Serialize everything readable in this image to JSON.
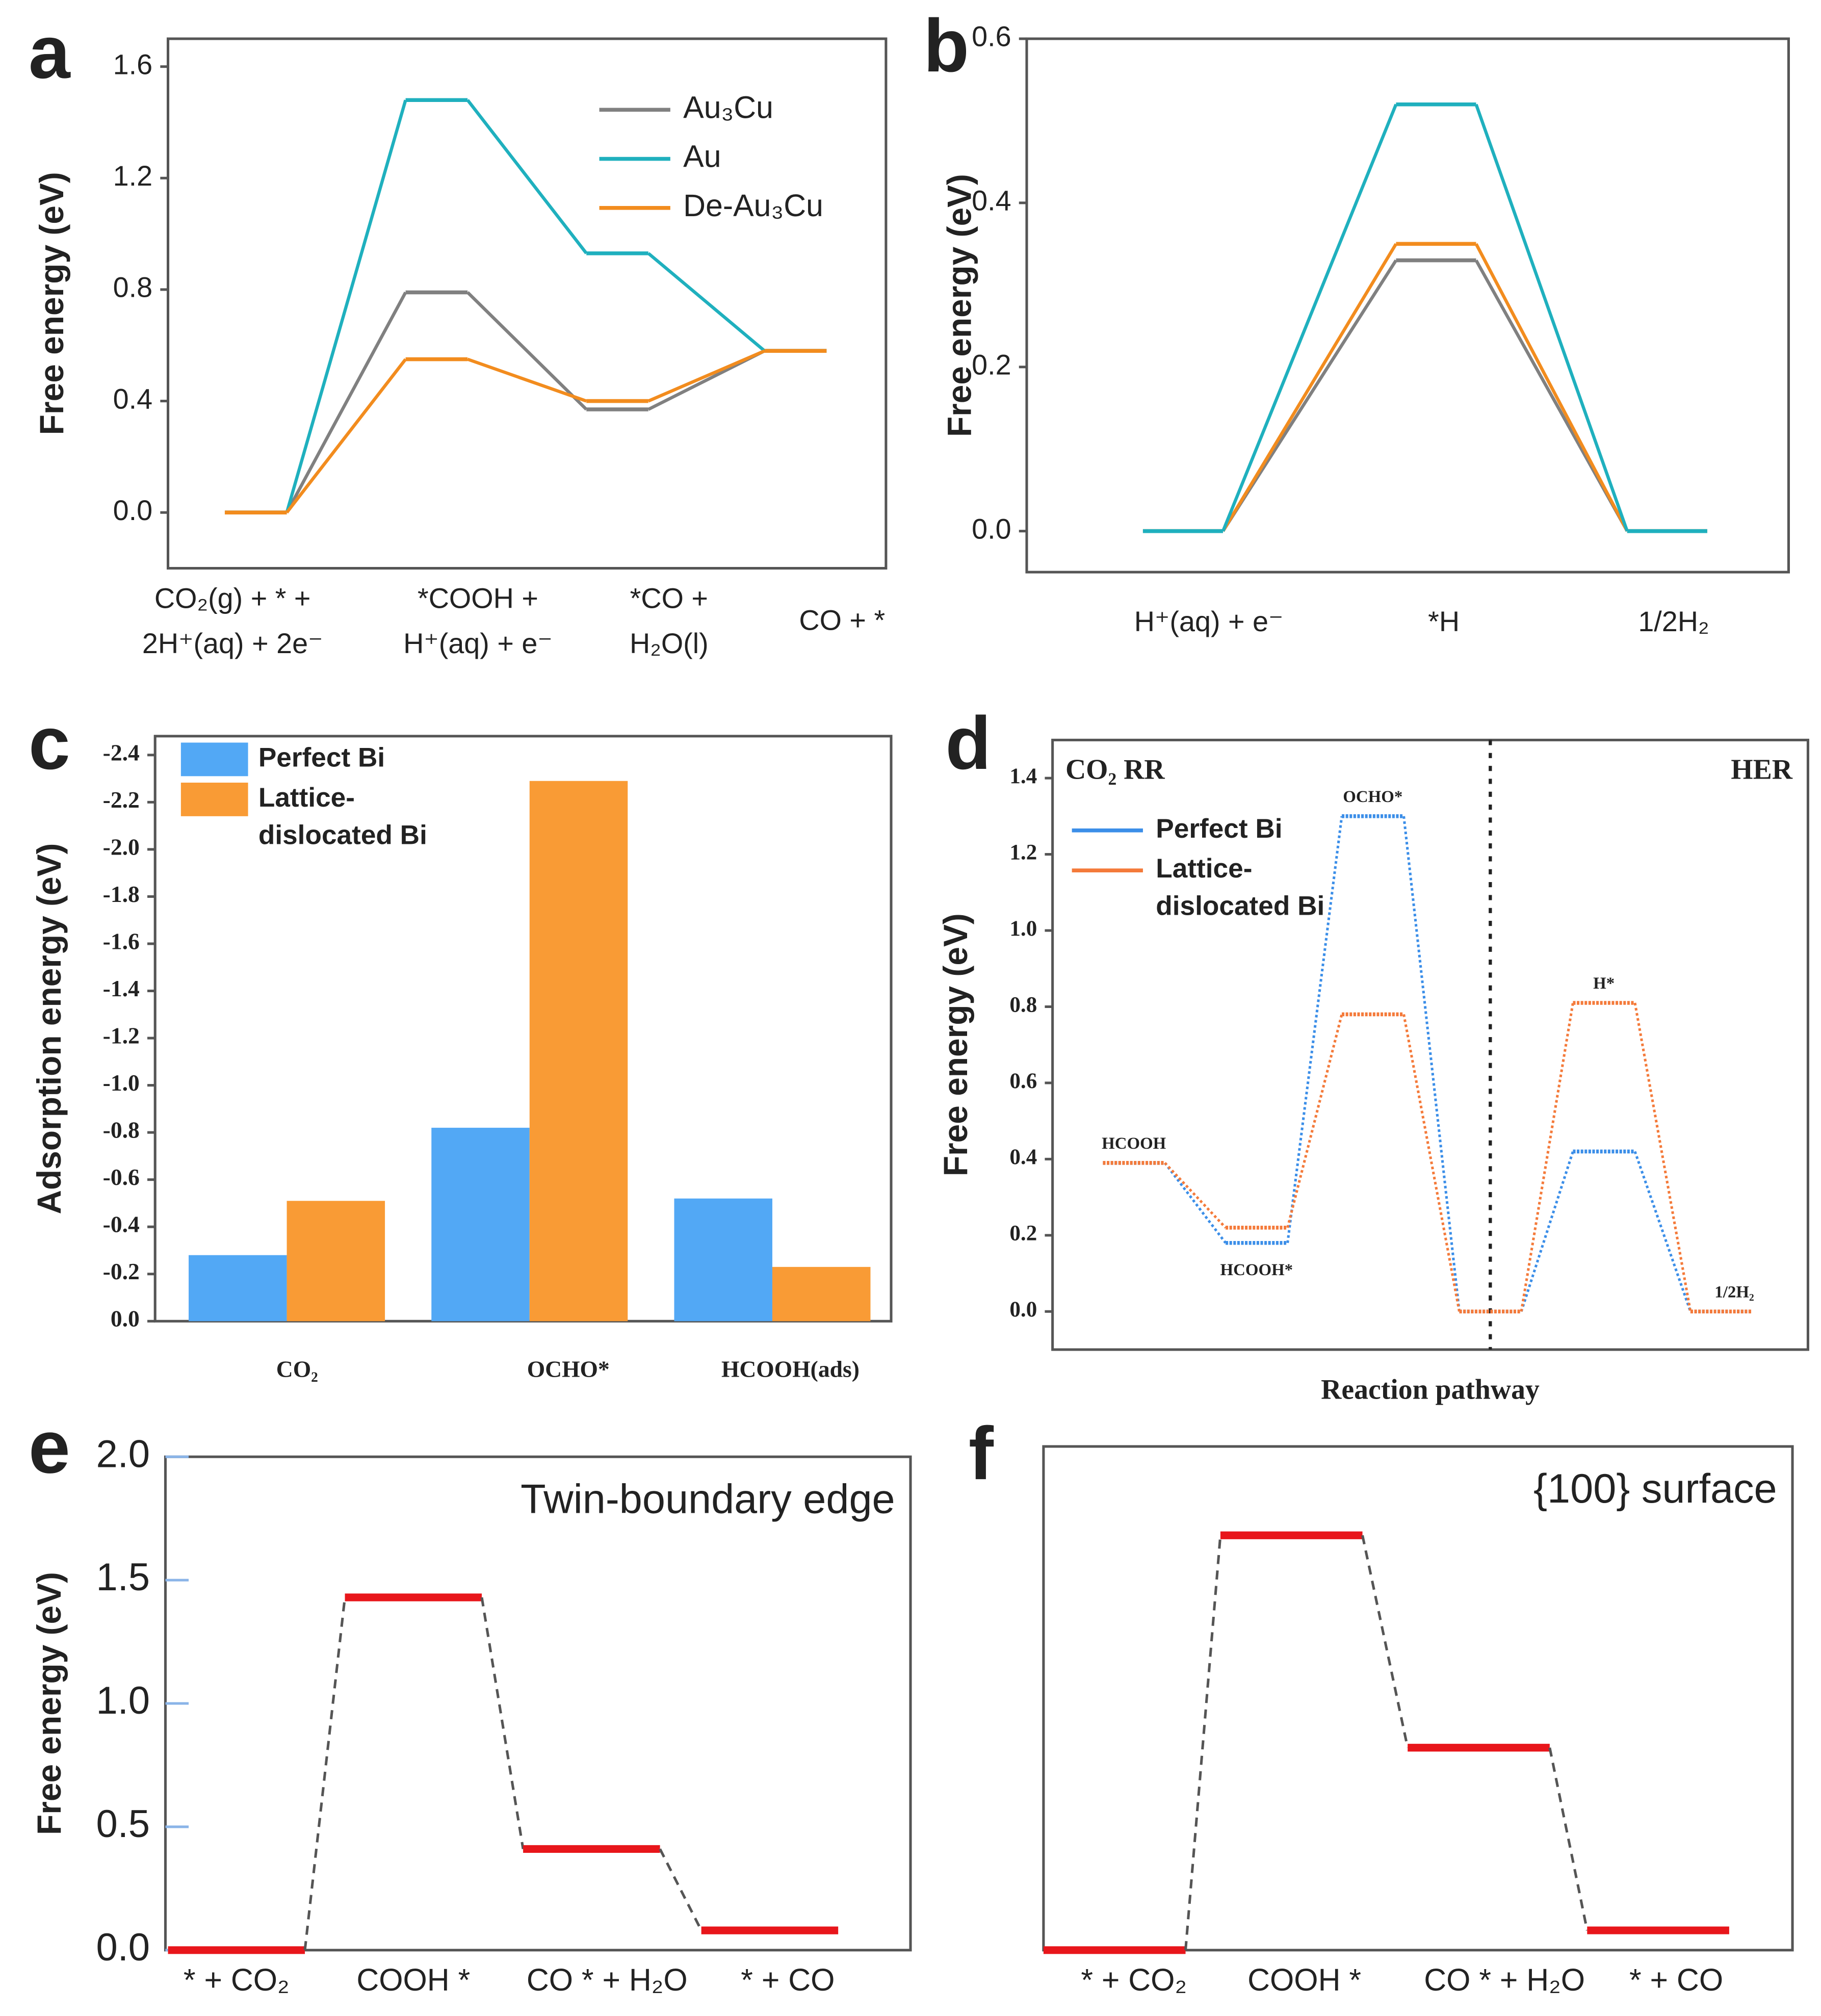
{
  "chart_data": [
    {
      "panel": "a",
      "type": "line",
      "y_label": "Free energy (eV)",
      "categories": [
        [
          "CO₂(g) + * +",
          "2H⁺(aq) + 2e⁻"
        ],
        [
          "*COOH +",
          "H⁺(aq) + e⁻"
        ],
        [
          "*CO +",
          "H₂O(l)"
        ],
        [
          "CO + *"
        ]
      ],
      "series": [
        {
          "name": "Au₃Cu",
          "color": "#808080",
          "values": [
            0,
            0.79,
            0.37,
            0.58
          ]
        },
        {
          "name": "Au",
          "color": "#1fb0be",
          "values": [
            0,
            1.48,
            0.93,
            0.58
          ]
        },
        {
          "name": "De-Au₃Cu",
          "color": "#f28c1e",
          "values": [
            0,
            0.55,
            0.4,
            0.58
          ]
        }
      ],
      "ylim": [
        -0.2,
        1.7
      ],
      "yticks": [
        {
          "value": 0,
          "label": "0.0"
        },
        0.4,
        0.8,
        1.2,
        1.6
      ],
      "legend": "upper right",
      "connector": "solid"
    },
    {
      "panel": "b",
      "type": "line",
      "y_label": "Free energy (eV)",
      "categories": [
        "H⁺(aq) + e⁻",
        "*H",
        "1/2H₂"
      ],
      "series": [
        {
          "color": "#808080",
          "values": [
            0,
            0.33,
            0
          ]
        },
        {
          "color": "#f28c1e",
          "values": [
            0,
            0.35,
            0
          ]
        },
        {
          "color": "#1fb0be",
          "values": [
            0,
            0.52,
            0
          ]
        }
      ],
      "ylim": [
        -0.05,
        0.6
      ],
      "yticks": [
        {
          "value": 0,
          "label": "0.0"
        },
        0.2,
        0.4,
        0.6
      ],
      "connector": "solid"
    },
    {
      "panel": "c",
      "type": "bar",
      "y_label": "Adsorption energy (eV)",
      "categories": [
        "CO₂",
        "OCHO*",
        "HCOOH(ads)"
      ],
      "series": [
        {
          "name": "Perfect Bi",
          "color": "#52a8f5",
          "values": [
            -0.28,
            -0.82,
            -0.52
          ]
        },
        {
          "name": "Lattice-dislocated Bi",
          "color": "#f99b35",
          "values": [
            -0.51,
            -2.29,
            -0.23
          ]
        }
      ],
      "ylim": [
        0,
        -2.48
      ],
      "yticks": [
        {
          "value": 0,
          "label": "0.0"
        },
        -0.2,
        -0.4,
        -0.6,
        -0.8,
        {
          "value": -1,
          "label": "-1.0"
        },
        -1.2,
        -1.4,
        -1.6,
        -1.8,
        {
          "value": -2,
          "label": "-2.0"
        },
        -2.2,
        -2.4
      ],
      "legend": "upper left"
    },
    {
      "panel": "d",
      "type": "line",
      "y_label": "Free energy (eV)",
      "x_label": "Reaction pathway",
      "categories": [
        "HCOOH",
        "HCOOH*",
        "OCHO*",
        null,
        "H*",
        "1/2H₂"
      ],
      "series": [
        {
          "name": "Perfect Bi",
          "color": "#3b8ee8",
          "values": [
            0.39,
            0.18,
            1.3,
            0,
            0.42,
            0
          ]
        },
        {
          "name": "Lattice-dislocated Bi",
          "color": "#f47a3a",
          "values": [
            0.39,
            0.22,
            0.78,
            0,
            0.81,
            0
          ]
        }
      ],
      "ylim": [
        -0.1,
        1.5
      ],
      "yticks": [
        {
          "value": 0,
          "label": "0.0"
        },
        0.2,
        0.4,
        0.6,
        0.8,
        {
          "value": 1,
          "label": "1.0"
        },
        1.2,
        1.4
      ],
      "annotations": [
        "CO₂ RR",
        "HER"
      ],
      "divider": true,
      "legend": "upper left",
      "connector": "dotted"
    },
    {
      "panel": "e",
      "type": "line",
      "y_label": "Free energy (eV)",
      "categories": [
        "* + CO₂",
        "COOH *",
        "CO * + H₂O",
        "* + CO"
      ],
      "series": [
        {
          "color": "#e8161b",
          "values": [
            0,
            1.43,
            0.41,
            0.08
          ]
        }
      ],
      "ylim": [
        0,
        2.0
      ],
      "yticks": [
        {
          "value": 0,
          "label": "0.0"
        },
        0.5,
        {
          "value": 1,
          "label": "1.0"
        },
        1.5,
        {
          "value": 2,
          "label": "2.0"
        }
      ],
      "annotations": [
        "Twin-boundary edge"
      ],
      "connector": "dashed",
      "connector_color": "#555555"
    },
    {
      "panel": "f",
      "type": "line",
      "categories": [
        "* + CO₂",
        "COOH *",
        "CO * + H₂O",
        "* + CO"
      ],
      "series": [
        {
          "color": "#e8161b",
          "values": [
            0,
            1.68,
            0.82,
            0.08
          ]
        }
      ],
      "ylim": [
        0,
        2.04
      ],
      "annotations": [
        "{100} surface"
      ],
      "connector": "dashed",
      "connector_color": "#555555"
    }
  ]
}
